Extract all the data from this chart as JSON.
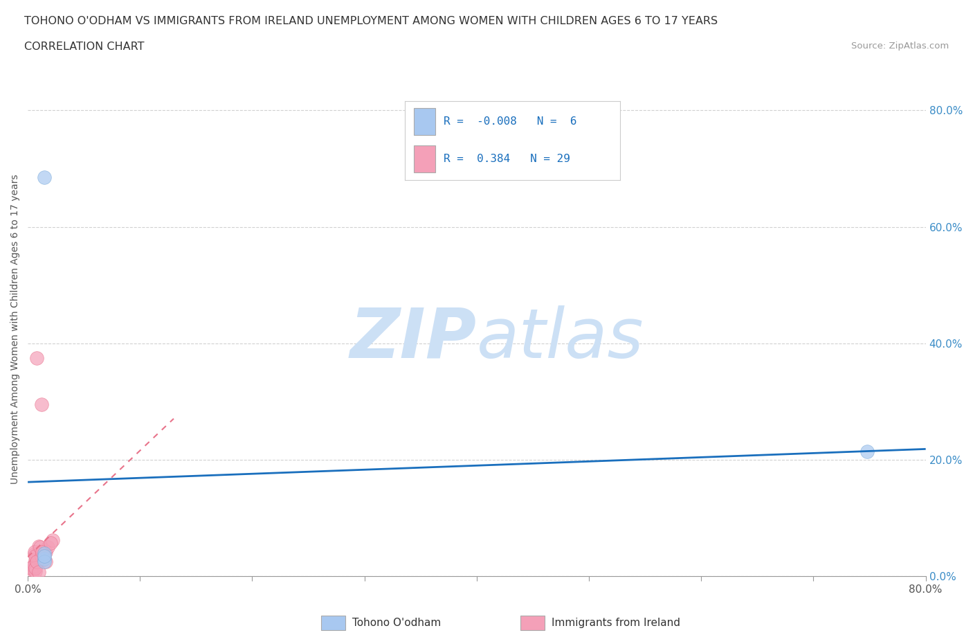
{
  "title_line1": "TOHONO O'ODHAM VS IMMIGRANTS FROM IRELAND UNEMPLOYMENT AMONG WOMEN WITH CHILDREN AGES 6 TO 17 YEARS",
  "title_line2": "CORRELATION CHART",
  "source_text": "Source: ZipAtlas.com",
  "ylabel": "Unemployment Among Women with Children Ages 6 to 17 years",
  "xlim": [
    0.0,
    0.8
  ],
  "ylim": [
    0.0,
    0.85
  ],
  "xtick_positions": [
    0.0,
    0.1,
    0.2,
    0.3,
    0.4,
    0.5,
    0.6,
    0.7,
    0.8
  ],
  "xticklabels_ends": {
    "0.0": "0.0%",
    "0.8": "80.0%"
  },
  "ytick_positions": [
    0.0,
    0.2,
    0.4,
    0.6,
    0.8
  ],
  "yticklabels": [
    "0.0%",
    "20.0%",
    "40.0%",
    "60.0%",
    "80.0%"
  ],
  "blue_points_x": [
    0.015,
    0.015,
    0.015,
    0.015,
    0.015,
    0.748
  ],
  "blue_points_y": [
    0.685,
    0.03,
    0.04,
    0.025,
    0.035,
    0.215
  ],
  "pink_points_x": [
    0.008,
    0.012,
    0.006,
    0.007,
    0.005,
    0.009,
    0.011,
    0.016,
    0.01,
    0.013,
    0.007,
    0.005,
    0.006,
    0.008,
    0.009,
    0.003,
    0.007,
    0.006,
    0.007,
    0.018,
    0.022,
    0.016,
    0.012,
    0.007,
    0.008,
    0.01,
    0.011,
    0.013,
    0.02
  ],
  "pink_points_y": [
    0.375,
    0.295,
    0.038,
    0.028,
    0.018,
    0.025,
    0.032,
    0.042,
    0.052,
    0.028,
    0.016,
    0.01,
    0.018,
    0.025,
    0.033,
    0.015,
    0.009,
    0.042,
    0.035,
    0.05,
    0.062,
    0.025,
    0.035,
    0.015,
    0.025,
    0.008,
    0.05,
    0.042,
    0.058
  ],
  "blue_R": -0.008,
  "blue_N": 6,
  "pink_R": 0.384,
  "pink_N": 29,
  "blue_color": "#a8c8f0",
  "pink_color": "#f4a0b8",
  "blue_edge_color": "#7aaad8",
  "pink_edge_color": "#e8708a",
  "blue_line_color": "#1a6fbd",
  "pink_line_color": "#e8738a",
  "watermark_color": "#cce0f5",
  "background_color": "#ffffff",
  "marker_size": 200,
  "marker_alpha": 0.7
}
